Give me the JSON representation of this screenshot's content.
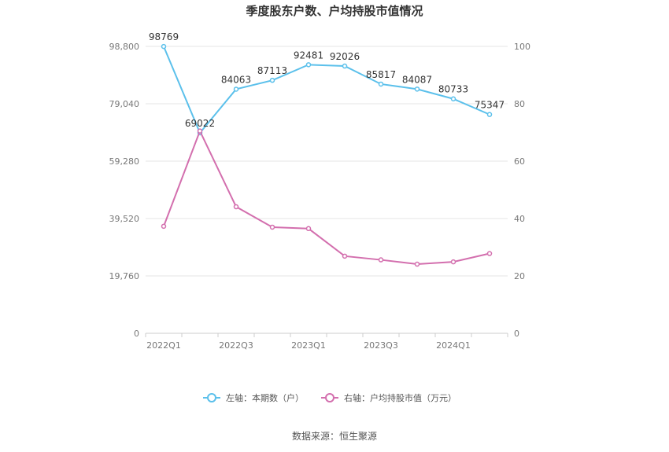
{
  "chart_data": {
    "type": "line",
    "title": "季度股东户数、户均持股市值情况",
    "source": "数据来源：恒生聚源",
    "categories": [
      "2022Q1",
      "2022Q2",
      "2022Q3",
      "2022Q4",
      "2023Q1",
      "2023Q2",
      "2023Q3",
      "2023Q4",
      "2024Q1",
      "2024Q2"
    ],
    "x_tick_labels": [
      "2022Q1",
      "2022Q3",
      "2023Q1",
      "2023Q3",
      "2024Q1"
    ],
    "x_tick_label_categories": [
      "2022Q1",
      "2022Q3",
      "2023Q1",
      "2023Q3",
      "2024Q1"
    ],
    "left_axis": {
      "ylim": [
        0,
        98800
      ],
      "ticks": [
        0,
        19760,
        39520,
        59280,
        79040,
        98800
      ],
      "tick_labels": [
        "0",
        "19,760",
        "39,520",
        "59,280",
        "79,040",
        "98,800"
      ]
    },
    "right_axis": {
      "ylim": [
        0,
        100
      ],
      "ticks": [
        0,
        20,
        40,
        60,
        80,
        100
      ],
      "tick_labels": [
        "0",
        "20",
        "40",
        "60",
        "80",
        "100"
      ]
    },
    "series": [
      {
        "name": "左轴：本期数（户）",
        "axis": "left",
        "color": "#5bc0eb",
        "values": [
          98769,
          69022,
          84063,
          87113,
          92481,
          92026,
          85817,
          84087,
          80733,
          75347
        ],
        "labels": [
          "98769",
          "69022",
          "84063",
          "87113",
          "92481",
          "92026",
          "85817",
          "84087",
          "80733",
          "75347"
        ]
      },
      {
        "name": "右轴：户均持股市值（万元）",
        "axis": "right",
        "color": "#d36fae",
        "values": [
          37.3,
          70.5,
          44.1,
          37.0,
          36.5,
          26.9,
          25.6,
          24.1,
          24.9,
          27.8
        ]
      }
    ],
    "grid": true,
    "legend_position": "bottom"
  }
}
